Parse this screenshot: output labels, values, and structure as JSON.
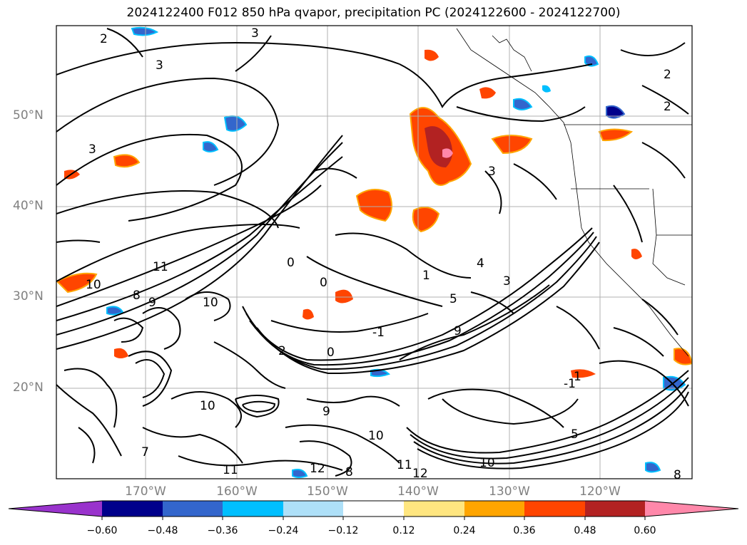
{
  "title": "2024122400 F012 850 hPa qvapor, precipitation PC (2024122600 - 2024122700)",
  "map": {
    "latitude_labels": [
      "50°N",
      "40°N",
      "30°N",
      "20°N"
    ],
    "longitude_labels": [
      "170°W",
      "160°W",
      "150°W",
      "140°W",
      "130°W",
      "120°W"
    ],
    "contour_labels": [
      "2",
      "3",
      "3",
      "3",
      "11",
      "10",
      "8",
      "9",
      "0",
      "0",
      "1",
      "-1",
      "5",
      "9",
      "3",
      "2",
      "10",
      "9",
      "12",
      "10",
      "11",
      "10",
      "8",
      "4",
      "-1",
      "0",
      "1",
      "5",
      "3",
      "2",
      "2",
      "7",
      "12",
      "10",
      "11",
      "8"
    ],
    "grid": true,
    "coastlines": true
  },
  "colorbar": {
    "ticks": [
      "−0.60",
      "−0.48",
      "−0.36",
      "−0.24",
      "−0.12",
      "0.12",
      "0.24",
      "0.36",
      "0.48",
      "0.60"
    ],
    "colors": [
      "#9933cc",
      "#00008b",
      "#3366cc",
      "#00bfff",
      "#aee0f8",
      "#ffffff",
      "#ffe680",
      "#ffa500",
      "#ff4500",
      "#b22222",
      "#ff88aa"
    ],
    "extend": "both"
  }
}
